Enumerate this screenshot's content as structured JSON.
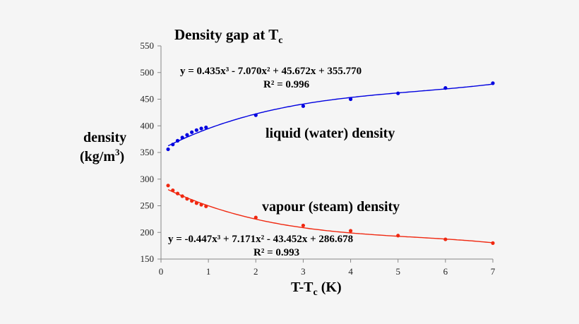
{
  "chart_data": {
    "type": "scatter",
    "title": "Density gap at T",
    "title_subscript": "c",
    "xlabel": "T-T",
    "xlabel_subscript": "c",
    "xlabel_suffix": " (K)",
    "ylabel_line1": "density",
    "ylabel_line2": "(kg/m",
    "ylabel_sup": "3",
    "ylabel_end": ")",
    "xlim": [
      0,
      7
    ],
    "ylim": [
      150,
      550
    ],
    "x_ticks": [
      "0",
      "1",
      "2",
      "3",
      "4",
      "5",
      "6",
      "7"
    ],
    "y_ticks": [
      "150",
      "200",
      "250",
      "300",
      "350",
      "400",
      "450",
      "500",
      "550"
    ],
    "grid": false,
    "series": [
      {
        "name": "liquid (water) density",
        "color": "#0000e0",
        "x": [
          0.15,
          0.25,
          0.35,
          0.45,
          0.55,
          0.65,
          0.75,
          0.85,
          0.95,
          2,
          3,
          4,
          5,
          6,
          7
        ],
        "y": [
          356,
          365,
          372,
          378,
          383,
          388,
          392,
          395,
          397,
          420,
          437,
          450,
          461,
          471,
          480
        ],
        "trendline": {
          "type": "poly3",
          "coeffs": [
            0.435,
            -7.07,
            45.672,
            355.77
          ],
          "equation": "y = 0.435x³ - 7.070x² + 45.672x + 355.770",
          "r2": "R² = 0.996"
        }
      },
      {
        "name": "vapour (steam) density",
        "color": "#f02810",
        "x": [
          0.15,
          0.25,
          0.35,
          0.45,
          0.55,
          0.65,
          0.75,
          0.85,
          0.95,
          2,
          3,
          4,
          5,
          6,
          7
        ],
        "y": [
          288,
          279,
          273,
          268,
          263,
          259,
          255,
          252,
          249,
          228,
          213,
          203,
          194,
          187,
          180
        ],
        "trendline": {
          "type": "poly3",
          "coeffs": [
            -0.447,
            7.171,
            -43.452,
            286.678
          ],
          "equation": "y = -0.447x³ + 7.171x² - 43.452x + 286.678",
          "r2": "R² = 0.993"
        }
      }
    ],
    "annotations": [
      "liquid (water) density",
      "vapour (steam) density"
    ]
  }
}
